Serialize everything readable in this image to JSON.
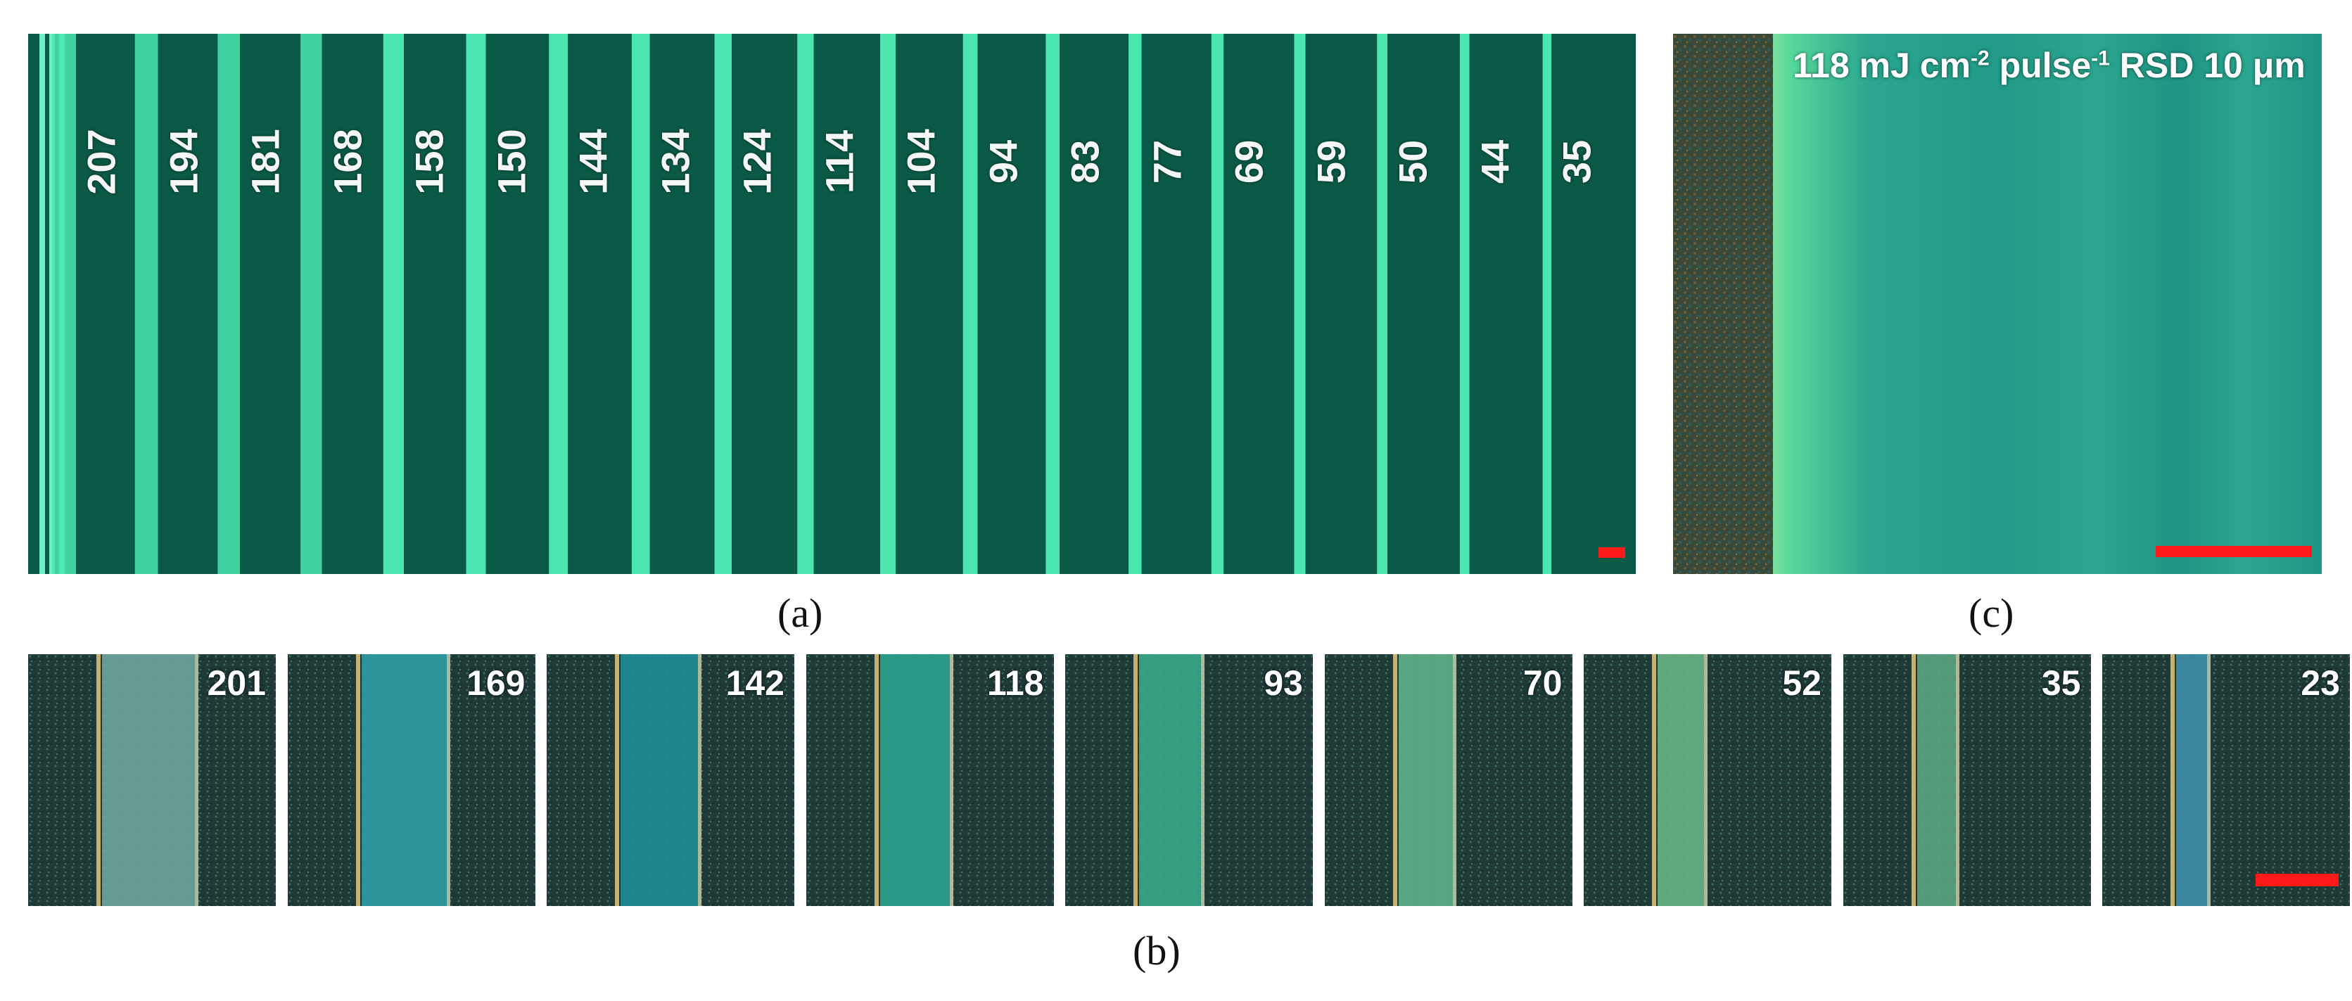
{
  "panel_a": {
    "caption": "(a)",
    "labels": [
      "207",
      "194",
      "181",
      "168",
      "158",
      "150",
      "144",
      "134",
      "124",
      "114",
      "104",
      "94",
      "83",
      "77",
      "69",
      "59",
      "50",
      "44",
      "35"
    ],
    "colors": {
      "background": "#0b5a47",
      "line": "#4be6b0"
    }
  },
  "panel_b": {
    "caption": "(b)",
    "tiles": [
      "201",
      "169",
      "142",
      "118",
      "93",
      "70",
      "52",
      "35",
      "23"
    ],
    "colors": {
      "background": "#1c3a35",
      "band": "#2a9a8f"
    }
  },
  "panel_c": {
    "caption": "(c)",
    "title_parts": {
      "value": "118 mJ cm",
      "exp1": "-2",
      "mid": " pulse",
      "exp2": "-1",
      "tail": " RSD 10 μm"
    },
    "colors": {
      "rough": "#3d4636",
      "edge": "#f0e29a",
      "smooth": "#1f9a86"
    }
  },
  "scalebar_color": "#ff1a1a"
}
